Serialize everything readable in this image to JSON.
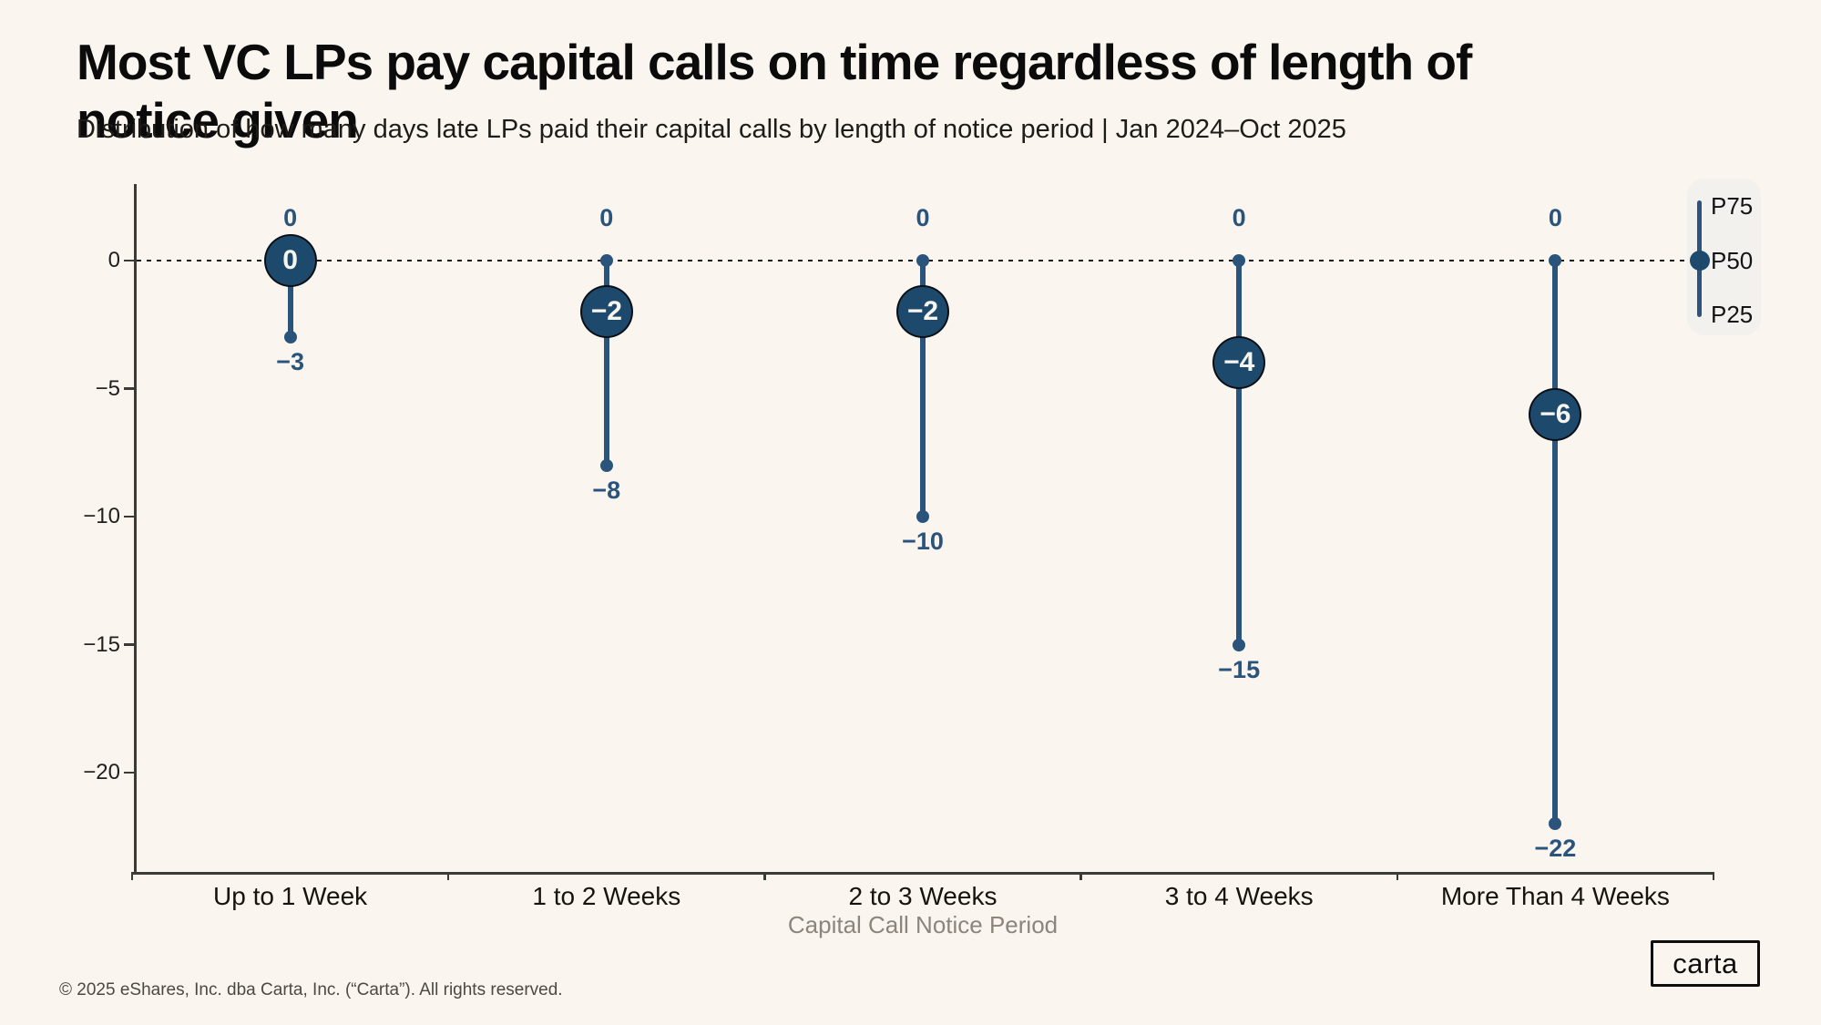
{
  "colors": {
    "bg": "#FAF6EF",
    "blue": "#2B547C",
    "circle": "#1D4A6C",
    "ink": "#0B0B0B",
    "gray": "#8B857B",
    "legend-bg": "#F2F1EE",
    "axis": "#3A3A37"
  },
  "chart_data": {
    "type": "dot-range",
    "title": "Most VC LPs pay capital calls on time regardless of length of notice given",
    "subtitle": "Distribution of how many days late LPs paid their capital calls by length of notice period | Jan 2024–Oct 2025",
    "xlabel": "Capital Call Notice Period",
    "categories": [
      "Up to 1 Week",
      "1 to 2 Weeks",
      "2 to 3 Weeks",
      "3 to 4 Weeks",
      "More Than 4 Weeks"
    ],
    "series": [
      {
        "name": "P75",
        "values": [
          0,
          0,
          0,
          0,
          0
        ]
      },
      {
        "name": "P50",
        "values": [
          0,
          -2,
          -2,
          -4,
          -6
        ]
      },
      {
        "name": "P25",
        "values": [
          -3,
          -8,
          -10,
          -15,
          -22
        ]
      }
    ],
    "point_labels": {
      "p75": [
        "0",
        "0",
        "0",
        "0",
        "0"
      ],
      "p50": [
        "0",
        "−2",
        "−2",
        "−4",
        "−6"
      ],
      "p25": [
        "−3",
        "−8",
        "−10",
        "−15",
        "−22"
      ]
    },
    "y_axis": {
      "ticks": [
        0,
        -5,
        -10,
        -15,
        -20
      ],
      "tick_labels": [
        "0",
        "−5",
        "−10",
        "−15",
        "−20"
      ],
      "zero_line": "dashed"
    },
    "legend": {
      "position": "top-right",
      "entries": [
        "P75",
        "P50",
        "P25"
      ]
    }
  },
  "footer": {
    "copyright": "© 2025 eShares, Inc. dba Carta, Inc. (“Carta”). All rights reserved.",
    "logo": "carta"
  }
}
